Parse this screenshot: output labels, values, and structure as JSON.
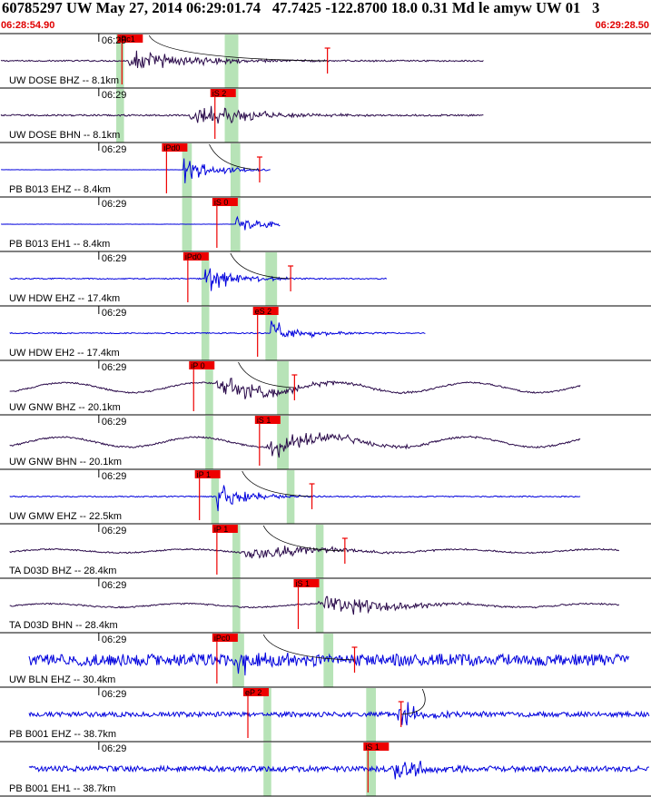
{
  "header": {
    "title": "60785297 UW May 27, 2014 06:29:01.74   47.7425 -122.8700 18.0 0.31 Md le amyw UW 01   3",
    "start_time": "06:28:54.90",
    "end_time": "06:29:28.50"
  },
  "colors": {
    "trace_dark": "#2a0a4a",
    "trace_blue": "#0000dd",
    "pick_box": "#ee0000",
    "window": "#b7e3b7",
    "axis": "#000000"
  },
  "chart_data": {
    "type": "line",
    "title": "60785297 UW May 27, 2014 06:29:01.74   47.7425 -122.8700 18.0 0.31 Md le amyw UW 01   3",
    "x_unit": "seconds after 06:28:54.90",
    "xlim": [
      0,
      33.6
    ],
    "tick": {
      "label": "06:29",
      "t": 5.1
    },
    "series": [
      {
        "name": "UW DOSE BHZ -- 8.1km",
        "style": "dark",
        "noise": 0.1,
        "onset": 6.4,
        "amp": 1.0,
        "env": "dark-p",
        "signal_end": 25.0,
        "picks": [
          {
            "label": "iPc1",
            "t": 6.2
          }
        ],
        "windows": [
          {
            "t0": 6.0,
            "t1": 6.4
          },
          {
            "t0": 11.6,
            "t1": 12.3
          }
        ],
        "marker": 16.9,
        "decay_curve": true
      },
      {
        "name": "UW DOSE BHN -- 8.1km",
        "style": "dark",
        "noise": 0.12,
        "onset": 9.5,
        "amp": 0.9,
        "env": "s",
        "signal_end": 25.0,
        "picks": [
          {
            "label": "iS 2",
            "t": 11.0
          }
        ],
        "windows": [
          {
            "t0": 6.0,
            "t1": 6.4
          },
          {
            "t0": 11.6,
            "t1": 12.3
          }
        ]
      },
      {
        "name": "PB B013 EHZ -- 8.4km",
        "style": "blue",
        "noise": 0.0,
        "onset": 9.5,
        "amp": 1.0,
        "env": "blue-p",
        "signal_end": 14.0,
        "picks": [
          {
            "label": "iPd0",
            "t": 8.5
          }
        ],
        "windows": [
          {
            "t0": 9.4,
            "t1": 9.9
          },
          {
            "t0": 11.9,
            "t1": 12.4
          }
        ],
        "marker": 13.4,
        "decay_curve": true
      },
      {
        "name": "PB B013 EH1 -- 8.4km",
        "style": "blue",
        "noise": 0.0,
        "onset": 12.2,
        "amp": 0.8,
        "env": "blue-s",
        "signal_end": 14.5,
        "picks": [
          {
            "label": "iS 0",
            "t": 11.1
          }
        ],
        "windows": [
          {
            "t0": 9.4,
            "t1": 9.9
          },
          {
            "t0": 11.9,
            "t1": 12.4
          }
        ]
      },
      {
        "name": "UW HDW EHZ -- 17.4km",
        "style": "blue",
        "noise": 0.08,
        "onset": 10.6,
        "amp": 1.0,
        "env": "blue-p",
        "signal_end": 20.0,
        "picks": [
          {
            "label": "iPd0",
            "t": 9.6
          }
        ],
        "windows": [
          {
            "t0": 10.4,
            "t1": 10.8
          },
          {
            "t0": 13.7,
            "t1": 14.3
          }
        ],
        "marker": 15.0,
        "decay_curve": true
      },
      {
        "name": "UW HDW EH2 -- 17.4km",
        "style": "blue",
        "noise": 0.08,
        "onset": 14.0,
        "amp": 1.0,
        "env": "blue-s",
        "signal_end": 22.0,
        "picks": [
          {
            "label": "eS 2",
            "t": 13.2
          }
        ],
        "windows": [
          {
            "t0": 10.4,
            "t1": 10.8
          },
          {
            "t0": 13.7,
            "t1": 14.3
          }
        ]
      },
      {
        "name": "UW GNW BHZ -- 20.1km",
        "style": "dark",
        "noise": 0.1,
        "onset": 11.0,
        "amp": 1.0,
        "env": "dark-p",
        "signal_end": 30.0,
        "picks": [
          {
            "label": "iP 0",
            "t": 9.9
          }
        ],
        "windows": [
          {
            "t0": 10.6,
            "t1": 11.0
          },
          {
            "t0": 14.3,
            "t1": 14.9
          }
        ],
        "marker": 15.2,
        "decay_curve": true
      },
      {
        "name": "UW GNW BHN -- 20.1km",
        "style": "dark",
        "noise": 0.12,
        "onset": 13.5,
        "amp": 1.0,
        "env": "s",
        "signal_end": 30.0,
        "picks": [
          {
            "label": "iS 1",
            "t": 13.3
          }
        ],
        "windows": [
          {
            "t0": 10.6,
            "t1": 11.0
          },
          {
            "t0": 14.3,
            "t1": 14.9
          }
        ]
      },
      {
        "name": "UW GMW EHZ -- 22.5km",
        "style": "blue",
        "noise": 0.08,
        "onset": 11.2,
        "amp": 1.0,
        "env": "blue-p",
        "signal_end": 30.0,
        "picks": [
          {
            "label": "iP 1",
            "t": 10.2
          }
        ],
        "windows": [
          {
            "t0": 10.9,
            "t1": 11.3
          },
          {
            "t0": 14.8,
            "t1": 15.2
          }
        ],
        "marker": 16.1,
        "decay_curve": true
      },
      {
        "name": "TA D03D BHZ -- 28.4km",
        "style": "dark",
        "noise": 0.1,
        "onset": 12.3,
        "amp": 0.8,
        "env": "dark-p",
        "signal_end": 32.0,
        "picks": [
          {
            "label": "iP 1",
            "t": 11.1
          }
        ],
        "windows": [
          {
            "t0": 12.0,
            "t1": 12.4
          },
          {
            "t0": 16.3,
            "t1": 16.7
          }
        ],
        "marker": 17.8,
        "decay_curve": true
      },
      {
        "name": "TA D03D BHN -- 28.4km",
        "style": "dark",
        "noise": 0.1,
        "onset": 16.3,
        "amp": 1.0,
        "env": "s",
        "signal_end": 32.0,
        "picks": [
          {
            "label": "iS 1",
            "t": 15.3
          }
        ],
        "windows": [
          {
            "t0": 12.0,
            "t1": 12.4
          },
          {
            "t0": 16.3,
            "t1": 16.7
          }
        ]
      },
      {
        "name": "UW BLN EHZ -- 30.4km",
        "style": "blue",
        "noise": 0.85,
        "onset": 12.3,
        "amp": 1.0,
        "env": "blue-p",
        "signal_end": 32.5,
        "picks": [
          {
            "label": "iPc0",
            "t": 11.1
          }
        ],
        "windows": [
          {
            "t0": 12.0,
            "t1": 12.6
          },
          {
            "t0": 16.7,
            "t1": 17.2
          }
        ],
        "marker": 18.3,
        "decay_curve": true
      },
      {
        "name": "PB B001 EHZ -- 38.7km",
        "style": "blue",
        "noise": 0.35,
        "onset": 20.5,
        "amp": 1.0,
        "env": "blue-s",
        "signal_end": 33.6,
        "picks": [
          {
            "label": "eP 2",
            "t": 12.7
          }
        ],
        "windows": [
          {
            "t0": 13.6,
            "t1": 14.0
          },
          {
            "t0": 18.9,
            "t1": 19.4
          }
        ],
        "marker": 20.7,
        "decay_curve": true
      },
      {
        "name": "PB B001 EH1 -- 38.7km",
        "style": "blue",
        "noise": 0.4,
        "onset": 20.4,
        "amp": 1.0,
        "env": "blue-s",
        "signal_end": 33.6,
        "picks": [
          {
            "label": "iS 1",
            "t": 18.9
          }
        ],
        "windows": [
          {
            "t0": 13.6,
            "t1": 14.0
          },
          {
            "t0": 18.9,
            "t1": 19.4
          }
        ]
      }
    ]
  }
}
